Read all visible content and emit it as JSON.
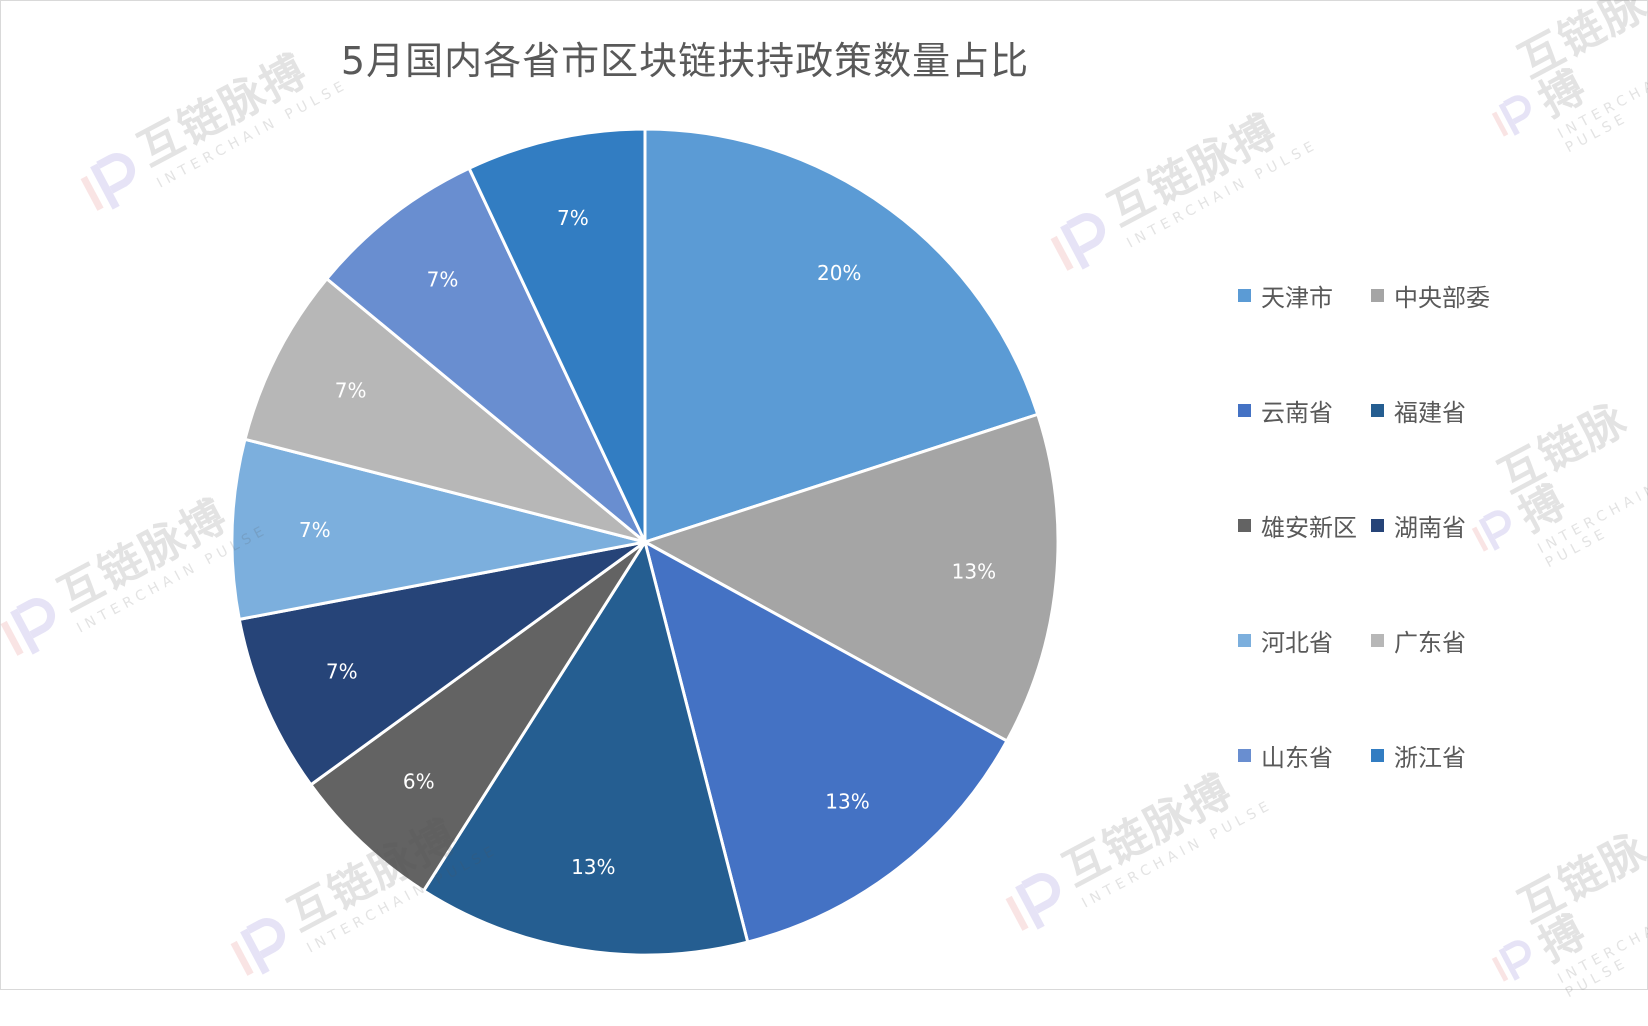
{
  "watermark": {
    "cn": "互链脉搏",
    "en": "INTERCHAIN PULSE"
  },
  "chart_data": {
    "type": "pie",
    "title": "5月国内各省市区块链扶持政策数量占比",
    "legend_position": "right",
    "slices": [
      {
        "label": "天津市",
        "value": 20,
        "display": "20%",
        "color": "#5b9bd5"
      },
      {
        "label": "中央部委",
        "value": 13,
        "display": "13%",
        "color": "#a5a5a5"
      },
      {
        "label": "云南省",
        "value": 13,
        "display": "13%",
        "color": "#4472c4"
      },
      {
        "label": "福建省",
        "value": 13,
        "display": "13%",
        "color": "#255e91"
      },
      {
        "label": "雄安新区",
        "value": 6,
        "display": "6%",
        "color": "#636363"
      },
      {
        "label": "湖南省",
        "value": 7,
        "display": "7%",
        "color": "#264478"
      },
      {
        "label": "河北省",
        "value": 7,
        "display": "7%",
        "color": "#7cafdd"
      },
      {
        "label": "广东省",
        "value": 7,
        "display": "7%",
        "color": "#b7b7b7"
      },
      {
        "label": "山东省",
        "value": 7,
        "display": "7%",
        "color": "#698ed0"
      },
      {
        "label": "浙江省",
        "value": 7,
        "display": "7%",
        "color": "#327dc2"
      }
    ]
  }
}
